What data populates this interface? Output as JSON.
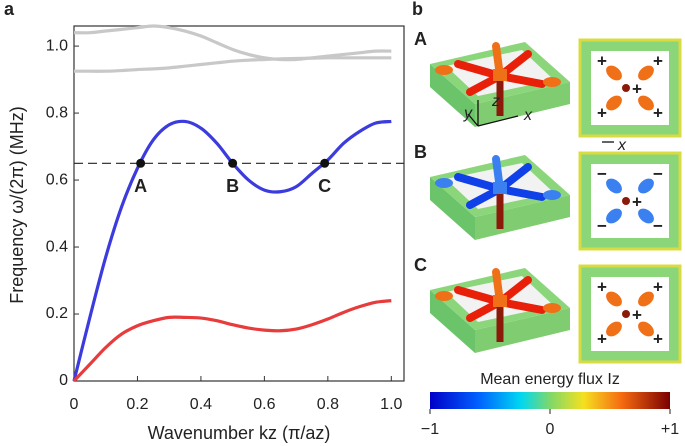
{
  "chart_data": {
    "type": "line",
    "panel_label": "a",
    "xlabel": "Wavenumber kz (π/az)",
    "ylabel": "Frequency ω/(2π) (MHz)",
    "x": [
      0,
      0.05,
      0.1,
      0.15,
      0.2,
      0.25,
      0.3,
      0.35,
      0.4,
      0.45,
      0.5,
      0.55,
      0.6,
      0.65,
      0.7,
      0.75,
      0.8,
      0.85,
      0.9,
      0.95,
      1.0
    ],
    "series": [
      {
        "color": "#c8c8c8",
        "values": [
          1.04,
          1.04,
          1.045,
          1.05,
          1.055,
          1.06,
          1.055,
          1.045,
          1.03,
          1.01,
          0.99,
          0.975,
          0.965,
          0.96,
          0.96,
          0.965,
          0.97,
          0.975,
          0.98,
          0.985,
          0.985
        ]
      },
      {
        "color": "#c8c8c8",
        "values": [
          0.925,
          0.925,
          0.925,
          0.927,
          0.93,
          0.932,
          0.935,
          0.94,
          0.945,
          0.95,
          0.955,
          0.958,
          0.96,
          0.962,
          0.963,
          0.964,
          0.965,
          0.965,
          0.965,
          0.965,
          0.965
        ]
      },
      {
        "color": "#3b3bde",
        "values": [
          0,
          0.19,
          0.37,
          0.52,
          0.635,
          0.72,
          0.765,
          0.775,
          0.755,
          0.71,
          0.65,
          0.6,
          0.57,
          0.565,
          0.58,
          0.62,
          0.66,
          0.71,
          0.745,
          0.77,
          0.775
        ]
      },
      {
        "color": "#e83c3c",
        "values": [
          0,
          0.05,
          0.1,
          0.14,
          0.165,
          0.18,
          0.19,
          0.19,
          0.188,
          0.18,
          0.168,
          0.158,
          0.152,
          0.15,
          0.155,
          0.168,
          0.185,
          0.205,
          0.222,
          0.235,
          0.24
        ]
      }
    ],
    "hline": 0.65,
    "points": [
      {
        "label": "A",
        "x": 0.21,
        "y": 0.65
      },
      {
        "label": "B",
        "x": 0.5,
        "y": 0.65
      },
      {
        "label": "C",
        "x": 0.79,
        "y": 0.65
      }
    ],
    "xlim": [
      0,
      1.04
    ],
    "ylim": [
      0,
      1.06
    ],
    "xticks": [
      0,
      0.2,
      0.4,
      0.6,
      0.8,
      {
        "value": 1,
        "label": "1.0"
      }
    ],
    "yticks": [
      0,
      0.2,
      0.4,
      0.6,
      0.8,
      {
        "value": 1,
        "label": "1.0"
      }
    ]
  },
  "panel_b": {
    "label": "b",
    "rows": [
      {
        "label": "A",
        "signs": [
          "+",
          "+",
          "+",
          "+",
          "+"
        ],
        "axes": [
          "y",
          "z",
          "x",
          "x"
        ]
      },
      {
        "label": "B",
        "signs": [
          "−",
          "−",
          "−",
          "−",
          "+"
        ]
      },
      {
        "label": "C",
        "signs": [
          "+",
          "+",
          "+",
          "+",
          "+"
        ]
      }
    ],
    "colorbar": {
      "title": "Mean energy flux Iz",
      "lim": [
        -1,
        1
      ],
      "ticks": [
        {
          "value": -1,
          "label": "−1"
        },
        0,
        {
          "value": 1,
          "label": "+1"
        }
      ]
    }
  }
}
